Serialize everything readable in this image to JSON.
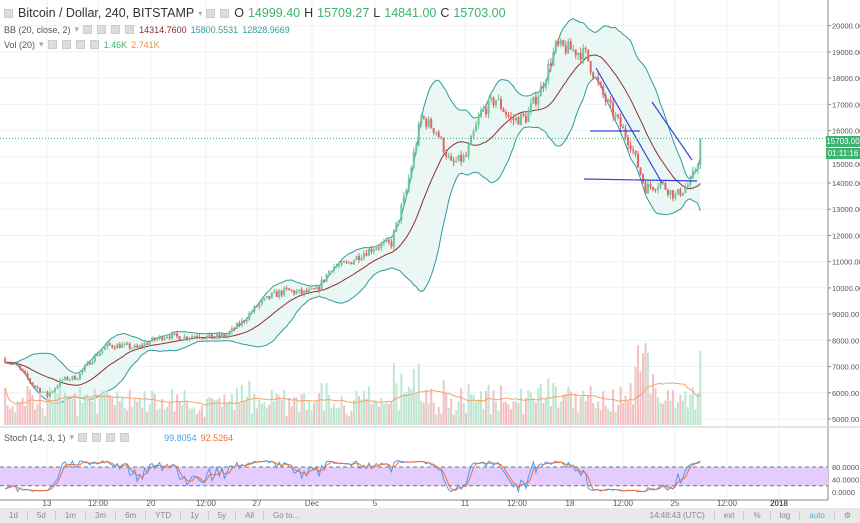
{
  "header": {
    "symbol": "Bitcoin / Dollar, 240, BITSTAMP",
    "o_label": "O",
    "o": "14999.40",
    "h_label": "H",
    "h": "15709.27",
    "l_label": "L",
    "l": "14841.00",
    "c_label": "C",
    "c": "15703.00"
  },
  "bb": {
    "label": "BB (20, close, 2)",
    "basis": "14314.7600",
    "upper": "15800.5531",
    "lower": "12828.9669"
  },
  "vol": {
    "label": "Vol (20)",
    "value": "1.46K",
    "ma": "2.741K"
  },
  "stoch": {
    "label": "Stoch (14, 3, 1)",
    "k": "99.8054",
    "d": "92.5264",
    "axis": [
      "80.0000",
      "40.0000",
      "0.0000"
    ]
  },
  "price_axis": [
    "20000.00",
    "19000.00",
    "18000.00",
    "17000.00",
    "16000.00",
    "15000.00",
    "14000.00",
    "13000.00",
    "12000.00",
    "11000.00",
    "10000.00",
    "9000.00",
    "8000.00",
    "7000.00",
    "6000.00",
    "5000.00"
  ],
  "last_price": "15703.00",
  "countdown": "01:11:16",
  "time_axis": [
    "13",
    "12:00",
    "20",
    "12:00",
    "27",
    "Dec",
    "5",
    "11",
    "12:00",
    "18",
    "12:00",
    "25",
    "12:00",
    "2018"
  ],
  "toolbar": {
    "ranges": [
      "1d",
      "5d",
      "1m",
      "3m",
      "6m",
      "YTD",
      "1y",
      "5y",
      "All",
      "Go to..."
    ],
    "clock": "14:48:43 (UTC)",
    "ext": "ext",
    "pct": "%",
    "log": "log",
    "auto": "auto"
  },
  "colors": {
    "up": "#6fc49a",
    "down": "#e06666",
    "bb_basis": "#8b2f2f",
    "bb_band": "#2e9b9b",
    "stoch_k": "#4a9cf5",
    "stoch_d": "#f0703a",
    "stoch_fill": "#e5ccff"
  },
  "chart_data": {
    "type": "candlestick",
    "interval_minutes": 240,
    "daily_close": [
      [
        "Nov 10",
        7000
      ],
      [
        "Nov 11",
        6300
      ],
      [
        "Nov 12",
        5900
      ],
      [
        "Nov 13",
        6500
      ],
      [
        "Nov 14",
        6600
      ],
      [
        "Nov 15",
        7300
      ],
      [
        "Nov 16",
        7800
      ],
      [
        "Nov 17",
        7800
      ],
      [
        "Nov 18",
        7700
      ],
      [
        "Nov 19",
        8000
      ],
      [
        "Nov 20",
        8200
      ],
      [
        "Nov 21",
        8100
      ],
      [
        "Nov 22",
        8200
      ],
      [
        "Nov 23",
        8100
      ],
      [
        "Nov 24",
        8200
      ],
      [
        "Nov 25",
        8700
      ],
      [
        "Nov 26",
        9300
      ],
      [
        "Nov 27",
        9700
      ],
      [
        "Nov 28",
        9900
      ],
      [
        "Nov 29",
        9800
      ],
      [
        "Nov 30",
        9900
      ],
      [
        "Dec 1",
        10800
      ],
      [
        "Dec 2",
        10900
      ],
      [
        "Dec 3",
        11300
      ],
      [
        "Dec 4",
        11600
      ],
      [
        "Dec 5",
        11700
      ],
      [
        "Dec 6",
        13700
      ],
      [
        "Dec 7",
        16500
      ],
      [
        "Dec 8",
        16000
      ],
      [
        "Dec 9",
        14700
      ],
      [
        "Dec 10",
        15000
      ],
      [
        "Dec 11",
        16700
      ],
      [
        "Dec 12",
        17200
      ],
      [
        "Dec 13",
        16400
      ],
      [
        "Dec 14",
        16500
      ],
      [
        "Dec 15",
        17600
      ],
      [
        "Dec 16",
        19200
      ],
      [
        "Dec 17",
        19100
      ],
      [
        "Dec 18",
        18900
      ],
      [
        "Dec 19",
        17500
      ],
      [
        "Dec 20",
        16500
      ],
      [
        "Dec 21",
        15500
      ],
      [
        "Dec 22",
        13800
      ],
      [
        "Dec 23",
        14000
      ],
      [
        "Dec 24",
        13500
      ],
      [
        "Dec 25",
        14000
      ],
      [
        "Dec 26",
        15700
      ]
    ],
    "ylim": [
      5000,
      20500
    ]
  }
}
